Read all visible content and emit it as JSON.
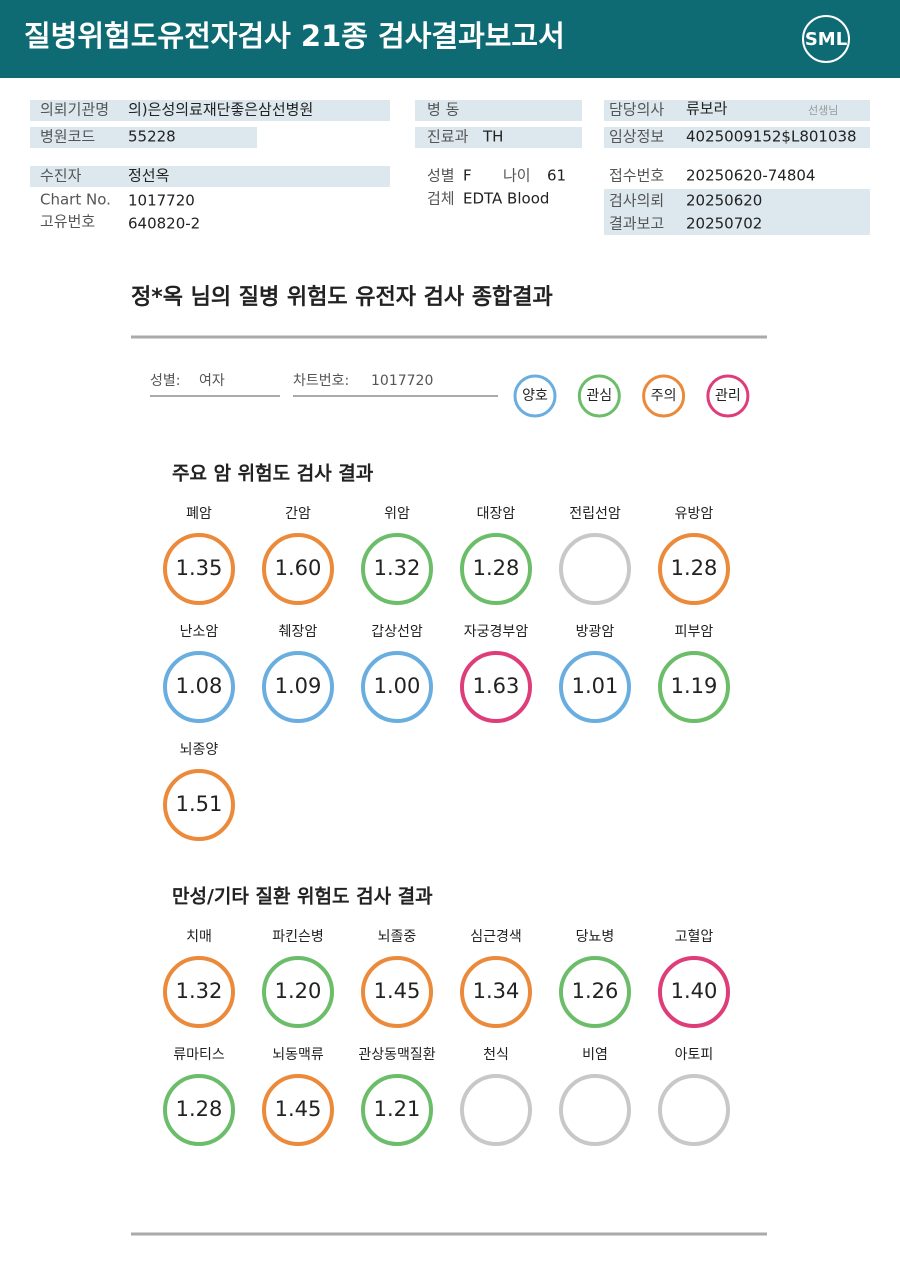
{
  "header": {
    "title": "질병위험도유전자검사 21종 검사결과보고서",
    "logo": "SML"
  },
  "info": {
    "institution": {
      "label": "의뢰기관명",
      "value": "의)은성의료재단좋은삼선병원"
    },
    "hospital_code": {
      "label": "병원코드",
      "value": "55228"
    },
    "patient": {
      "label": "수진자",
      "value": "정선옥"
    },
    "chart_no": {
      "label": "Chart No.",
      "value": "1017720"
    },
    "unique_no": {
      "label": "고유번호",
      "value": "640820-2"
    },
    "ward": {
      "label": "병 동"
    },
    "dept": {
      "label": "진료과",
      "value": "TH"
    },
    "sex": {
      "label": "성별",
      "value": "F"
    },
    "age": {
      "label": "나이",
      "value": "61"
    },
    "specimen": {
      "label": "검체",
      "value": "EDTA Blood"
    },
    "doctor": {
      "label": "담당의사",
      "value": "류보라",
      "suffix": "선생님"
    },
    "clinical": {
      "label": "임상정보",
      "value": "4025009152$L801038"
    },
    "receipt": {
      "label": "접수번호",
      "value": "20250620-74804"
    },
    "requested": {
      "label": "검사의뢰",
      "value": "20250620"
    },
    "reported": {
      "label": "결과보고",
      "value": "20250702"
    }
  },
  "summary": {
    "title": "정*옥 님의 질병 위험도 유전자 검사 종합결과",
    "sex_label": "성별:",
    "sex": "여자",
    "chart_label": "차트번호:",
    "chart": "1017720",
    "legend": [
      {
        "label": "양호",
        "color": "#6aaee0"
      },
      {
        "label": "관심",
        "color": "#6cbd6a"
      },
      {
        "label": "주의",
        "color": "#eb8a3a"
      },
      {
        "label": "관리",
        "color": "#de3d7a"
      }
    ]
  },
  "sections": [
    {
      "title": "주요 암 위험도 검사 결과",
      "items": [
        {
          "name": "폐암",
          "value": "1.35",
          "color": "#eb8a3a"
        },
        {
          "name": "간암",
          "value": "1.60",
          "color": "#eb8a3a"
        },
        {
          "name": "위암",
          "value": "1.32",
          "color": "#6cbd6a"
        },
        {
          "name": "대장암",
          "value": "1.28",
          "color": "#6cbd6a"
        },
        {
          "name": "전립선암",
          "value": null,
          "color": "#c8c8c8"
        },
        {
          "name": "유방암",
          "value": "1.28",
          "color": "#eb8a3a"
        },
        {
          "name": "난소암",
          "value": "1.08",
          "color": "#6aaee0"
        },
        {
          "name": "췌장암",
          "value": "1.09",
          "color": "#6aaee0"
        },
        {
          "name": "갑상선암",
          "value": "1.00",
          "color": "#6aaee0"
        },
        {
          "name": "자궁경부암",
          "value": "1.63",
          "color": "#de3d7a"
        },
        {
          "name": "방광암",
          "value": "1.01",
          "color": "#6aaee0"
        },
        {
          "name": "피부암",
          "value": "1.19",
          "color": "#6cbd6a"
        },
        {
          "name": "뇌종양",
          "value": "1.51",
          "color": "#eb8a3a"
        }
      ]
    },
    {
      "title": "만성/기타 질환 위험도 검사 결과",
      "items": [
        {
          "name": "치매",
          "value": "1.32",
          "color": "#eb8a3a"
        },
        {
          "name": "파킨슨병",
          "value": "1.20",
          "color": "#6cbd6a"
        },
        {
          "name": "뇌졸중",
          "value": "1.45",
          "color": "#eb8a3a"
        },
        {
          "name": "심근경색",
          "value": "1.34",
          "color": "#eb8a3a"
        },
        {
          "name": "당뇨병",
          "value": "1.26",
          "color": "#6cbd6a"
        },
        {
          "name": "고혈압",
          "value": "1.40",
          "color": "#de3d7a"
        },
        {
          "name": "류마티스",
          "value": "1.28",
          "color": "#6cbd6a"
        },
        {
          "name": "뇌동맥류",
          "value": "1.45",
          "color": "#eb8a3a"
        },
        {
          "name": "관상동맥질환",
          "value": "1.21",
          "color": "#6cbd6a"
        },
        {
          "name": "천식",
          "value": null,
          "color": "#c8c8c8"
        },
        {
          "name": "비염",
          "value": null,
          "color": "#c8c8c8"
        },
        {
          "name": "아토피",
          "value": null,
          "color": "#c8c8c8"
        }
      ]
    }
  ]
}
